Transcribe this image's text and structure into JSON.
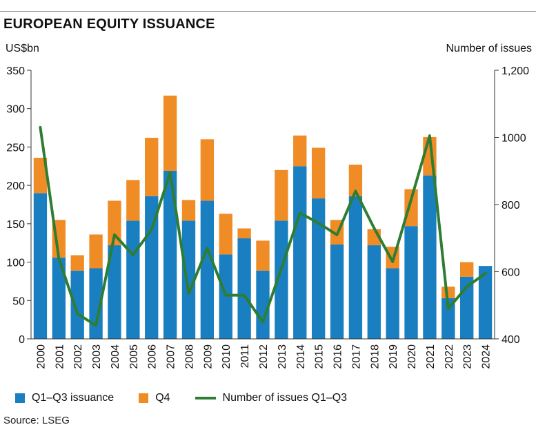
{
  "title": "EUROPEAN EQUITY ISSUANCE",
  "source": "Source: LSEG",
  "legend": {
    "q1q3": "Q1–Q3 issuance",
    "q4": "Q4",
    "line": "Number of issues Q1–Q3"
  },
  "colors": {
    "q1q3": "#1a7fc1",
    "q4": "#f08c25",
    "line": "#2e7d32",
    "axis": "#333333"
  },
  "chart_data": {
    "type": "bar",
    "stacked": true,
    "title": "EUROPEAN EQUITY ISSUANCE",
    "ylabel": "US$bn",
    "y2label": "Number of issues",
    "ylim": [
      0,
      350
    ],
    "y2lim": [
      400,
      1200
    ],
    "yticks": [
      0,
      50,
      100,
      150,
      200,
      250,
      300,
      350
    ],
    "y2ticks": [
      400,
      600,
      800,
      1000,
      1200
    ],
    "y2tick_labels": [
      "400",
      "600",
      "800",
      "1000",
      "1,200"
    ],
    "categories": [
      "2000",
      "2001",
      "2002",
      "2003",
      "2004",
      "2005",
      "2006",
      "2007",
      "2008",
      "2009",
      "2010",
      "2011",
      "2012",
      "2013",
      "2014",
      "2015",
      "2016",
      "2017",
      "2018",
      "2019",
      "2020",
      "2021",
      "2022",
      "2023",
      "2024"
    ],
    "series": [
      {
        "name": "Q1–Q3 issuance",
        "axis": "left",
        "values": [
          190,
          106,
          89,
          92,
          122,
          154,
          186,
          219,
          154,
          180,
          110,
          131,
          89,
          154,
          225,
          183,
          123,
          186,
          122,
          92,
          147,
          213,
          53,
          81,
          95
        ]
      },
      {
        "name": "Q4",
        "axis": "left",
        "values": [
          46,
          49,
          20,
          44,
          58,
          53,
          76,
          98,
          27,
          80,
          53,
          13,
          39,
          66,
          40,
          66,
          32,
          41,
          21,
          28,
          48,
          50,
          15,
          19,
          0
        ]
      },
      {
        "name": "Number of issues Q1–Q3",
        "type": "line",
        "axis": "right",
        "values": [
          1030,
          640,
          475,
          440,
          710,
          650,
          725,
          895,
          535,
          670,
          530,
          530,
          450,
          610,
          775,
          745,
          710,
          840,
          730,
          630,
          815,
          1005,
          490,
          555,
          595
        ]
      }
    ]
  }
}
